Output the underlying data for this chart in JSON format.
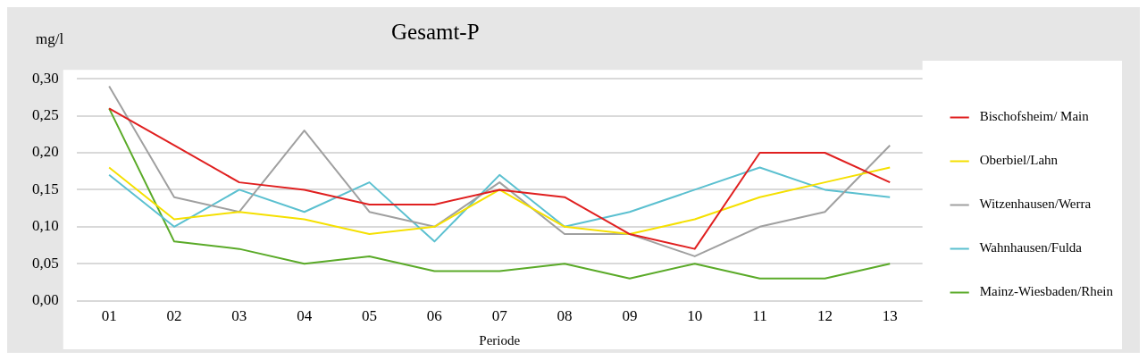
{
  "chart_data": {
    "type": "line",
    "title": "Gesamt-P",
    "ylabel": "mg/l",
    "xlabel": "Periode",
    "categories": [
      "01",
      "02",
      "03",
      "04",
      "05",
      "06",
      "07",
      "08",
      "09",
      "10",
      "11",
      "12",
      "13"
    ],
    "series": [
      {
        "name": "Bischofsheim/ Main",
        "color": "#e02020",
        "values": [
          0.26,
          0.21,
          0.16,
          0.15,
          0.13,
          0.13,
          0.15,
          0.14,
          0.09,
          0.07,
          0.2,
          0.2,
          0.16
        ]
      },
      {
        "name": "Oberbiel/Lahn",
        "color": "#f5e000",
        "values": [
          0.18,
          0.11,
          0.12,
          0.11,
          0.09,
          0.1,
          0.15,
          0.1,
          0.09,
          0.11,
          0.14,
          0.16,
          0.18
        ]
      },
      {
        "name": "Witzenhausen/Werra",
        "color": "#a0a0a0",
        "values": [
          0.29,
          0.14,
          0.12,
          0.23,
          0.12,
          0.1,
          0.16,
          0.09,
          0.09,
          0.06,
          0.1,
          0.12,
          0.21
        ]
      },
      {
        "name": "Wahnhausen/Fulda",
        "color": "#5bc0d0",
        "values": [
          0.17,
          0.1,
          0.15,
          0.12,
          0.16,
          0.08,
          0.17,
          0.1,
          0.12,
          0.15,
          0.18,
          0.15,
          0.14
        ]
      },
      {
        "name": "Mainz-Wiesbaden/Rhein",
        "color": "#5aaa28",
        "values": [
          0.26,
          0.08,
          0.07,
          0.05,
          0.06,
          0.04,
          0.04,
          0.05,
          0.03,
          0.05,
          0.03,
          0.03,
          0.05
        ]
      }
    ],
    "ylim": [
      0,
      0.3
    ],
    "yticks": [
      {
        "value": 0,
        "label": "0,00"
      },
      {
        "value": 0.05,
        "label": "0,05"
      },
      {
        "value": 0.1,
        "label": "0,10"
      },
      {
        "value": 0.15,
        "label": "0,15"
      },
      {
        "value": 0.2,
        "label": "0,20"
      },
      {
        "value": 0.25,
        "label": "0,25"
      },
      {
        "value": 0.3,
        "label": "0,30"
      }
    ],
    "grid": "y",
    "legend": "right",
    "marker": "none",
    "line_style": "solid"
  }
}
